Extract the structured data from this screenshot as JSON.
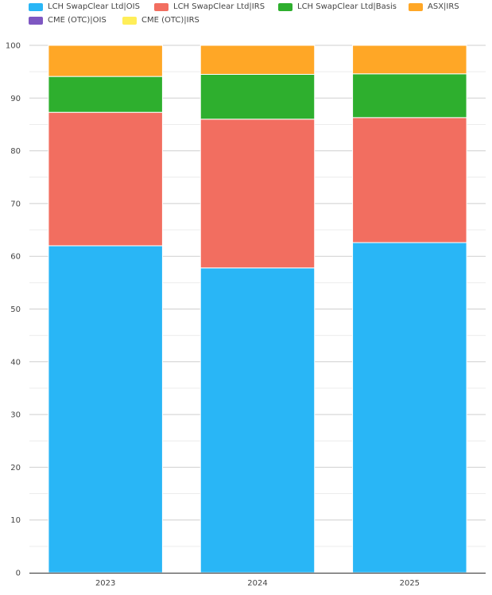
{
  "chart_data": {
    "type": "bar",
    "stacked": true,
    "categories": [
      "2023",
      "2024",
      "2025"
    ],
    "series": [
      {
        "name": "LCH SwapClear Ltd|OIS",
        "color": "#29b6f6",
        "values": [
          62.0,
          57.8,
          62.6
        ]
      },
      {
        "name": "LCH SwapClear Ltd|IRS",
        "color": "#f26e60",
        "values": [
          25.3,
          28.2,
          23.7
        ]
      },
      {
        "name": "LCH SwapClear Ltd|Basis",
        "color": "#2eaf2e",
        "values": [
          6.8,
          8.5,
          8.3
        ]
      },
      {
        "name": "ASX|IRS",
        "color": "#ffa726",
        "values": [
          5.9,
          5.5,
          5.4
        ]
      },
      {
        "name": "CME (OTC)|OIS",
        "color": "#7e57c2",
        "values": [
          0,
          0,
          0
        ]
      },
      {
        "name": "CME (OTC)|IRS",
        "color": "#ffee58",
        "values": [
          0,
          0,
          0
        ]
      }
    ],
    "ylim": [
      0,
      100
    ],
    "yticks": [
      0,
      10,
      20,
      30,
      40,
      50,
      60,
      70,
      80,
      90,
      100
    ],
    "grid": true,
    "legend_position": "top"
  }
}
